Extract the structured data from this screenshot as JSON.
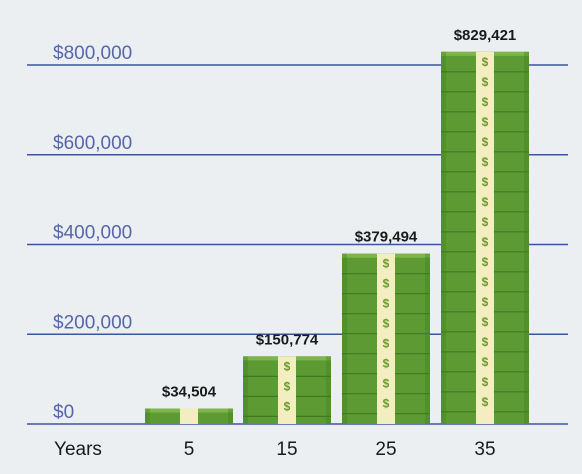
{
  "chart_data": {
    "type": "bar",
    "xlabel": "Years",
    "categories": [
      "5",
      "15",
      "25",
      "35"
    ],
    "values": [
      34504,
      150774,
      379494,
      829421
    ],
    "data_labels": [
      "$34,504",
      "$150,774",
      "$379,494",
      "$829,421"
    ],
    "ylim": [
      0,
      800000
    ],
    "yticks": [
      0,
      200000,
      400000,
      600000,
      800000
    ],
    "ytick_labels": [
      "$0",
      "$200,000",
      "$400,000",
      "$600,000",
      "$800,000"
    ],
    "grid": true,
    "legend": "none",
    "colors": {
      "bill_dark": "#3f7a22",
      "bill_mid": "#5d9a34",
      "bill_light": "#7fb64c",
      "band": "#f3eec0",
      "dollar_sign": "#6c9a2e",
      "gridline": "#3c55a0",
      "ytick_text": "#5566aa",
      "text": "#1a1a1a",
      "background": "#eceff1"
    }
  }
}
